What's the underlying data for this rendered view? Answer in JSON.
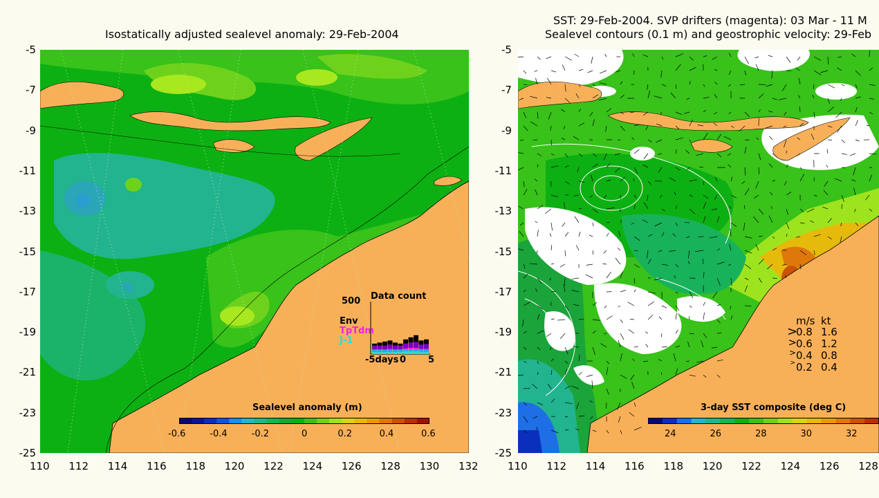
{
  "left_panel": {
    "title": "Isostatically adjusted sealevel anomaly: 29-Feb-2004",
    "colorbar": {
      "label": "Sealevel anomaly (m)",
      "ticks": [
        "-0.6",
        "-0.4",
        "-0.2",
        "0",
        "0.2",
        "0.4",
        "0.6"
      ],
      "colors": [
        "#060a6e",
        "#08158f",
        "#0a2fbd",
        "#0b58d6",
        "#1e8ee6",
        "#2ab3c6",
        "#22b48e",
        "#18b25a",
        "#1aa43a",
        "#0cb012",
        "#38c21a",
        "#6ed21c",
        "#9ee41e",
        "#d8d612",
        "#e6ba0a",
        "#e69a08",
        "#de780a",
        "#cc5208",
        "#b83006",
        "#a01002"
      ]
    },
    "data_count": {
      "title": "Data count",
      "max_label": "500",
      "series": [
        {
          "name": "Env",
          "color": "#000000"
        },
        {
          "name": "TpTdm",
          "color": "#ee22ee"
        },
        {
          "name": "J-1",
          "color": "#22dddd"
        }
      ],
      "x_start": "-5days",
      "x_mid": "0",
      "x_end": "5",
      "counts": [
        [
          20,
          40,
          45,
          80,
          100
        ],
        [
          20,
          40,
          45,
          80,
          110
        ],
        [
          20,
          40,
          45,
          80,
          120
        ],
        [
          20,
          40,
          50,
          90,
          130
        ],
        [
          20,
          40,
          45,
          80,
          110
        ],
        [
          20,
          40,
          45,
          80,
          100
        ],
        [
          25,
          45,
          55,
          100,
          140
        ],
        [
          25,
          45,
          60,
          110,
          160
        ],
        [
          25,
          45,
          60,
          115,
          180
        ],
        [
          20,
          40,
          50,
          90,
          130
        ],
        [
          20,
          40,
          50,
          95,
          140
        ]
      ]
    }
  },
  "right_panel": {
    "title_line1": "SST: 29-Feb-2004. SVP drifters (magenta): 03 Mar - 11 M",
    "title_line2": "Sealevel contours (0.1 m) and geostrophic velocity: 29-Feb",
    "colorbar": {
      "label": "3-day SST composite (deg C)",
      "ticks": [
        "24",
        "26",
        "28",
        "30",
        "32"
      ],
      "colors": [
        "#060a6e",
        "#0a2fbd",
        "#1e6ee6",
        "#2ab3c6",
        "#22b48e",
        "#18b25a",
        "#0cb012",
        "#38c21a",
        "#6ed21c",
        "#9ee41e",
        "#d8d612",
        "#e6ba0a",
        "#e69a08",
        "#de780a",
        "#cc5208",
        "#b83006"
      ]
    },
    "velocity_legend": {
      "header_ms": "m/s",
      "header_kt": "kt",
      "rows": [
        {
          "ms": "0.8",
          "kt": "1.6"
        },
        {
          "ms": "0.6",
          "kt": "1.2"
        },
        {
          "ms": "0.4",
          "kt": "0.8"
        },
        {
          "ms": "0.2",
          "kt": "0.4"
        }
      ]
    }
  },
  "axes": {
    "y_labels": [
      "-5",
      "-7",
      "-9",
      "-11",
      "-13",
      "-15",
      "-17",
      "-19",
      "-21",
      "-23",
      "-25"
    ],
    "left_x_labels": [
      "110",
      "112",
      "114",
      "116",
      "118",
      "120",
      "122",
      "124",
      "126",
      "128",
      "130",
      "132"
    ],
    "right_x_labels": [
      "110",
      "112",
      "114",
      "116",
      "118",
      "120",
      "122",
      "124",
      "126",
      "128"
    ]
  },
  "map_colors": {
    "land": "#f8b058",
    "sea_base": "#0cb012",
    "sea_light": "#38c21a",
    "sea_lighter": "#6ed21c",
    "sea_yellow": "#a8e81e",
    "sea_teal": "#22b48e",
    "sea_cyan": "#2aa6b8",
    "cloud": "#ffffff",
    "sst_warm": "#de780a",
    "sst_blue": "#1e6ee6"
  }
}
